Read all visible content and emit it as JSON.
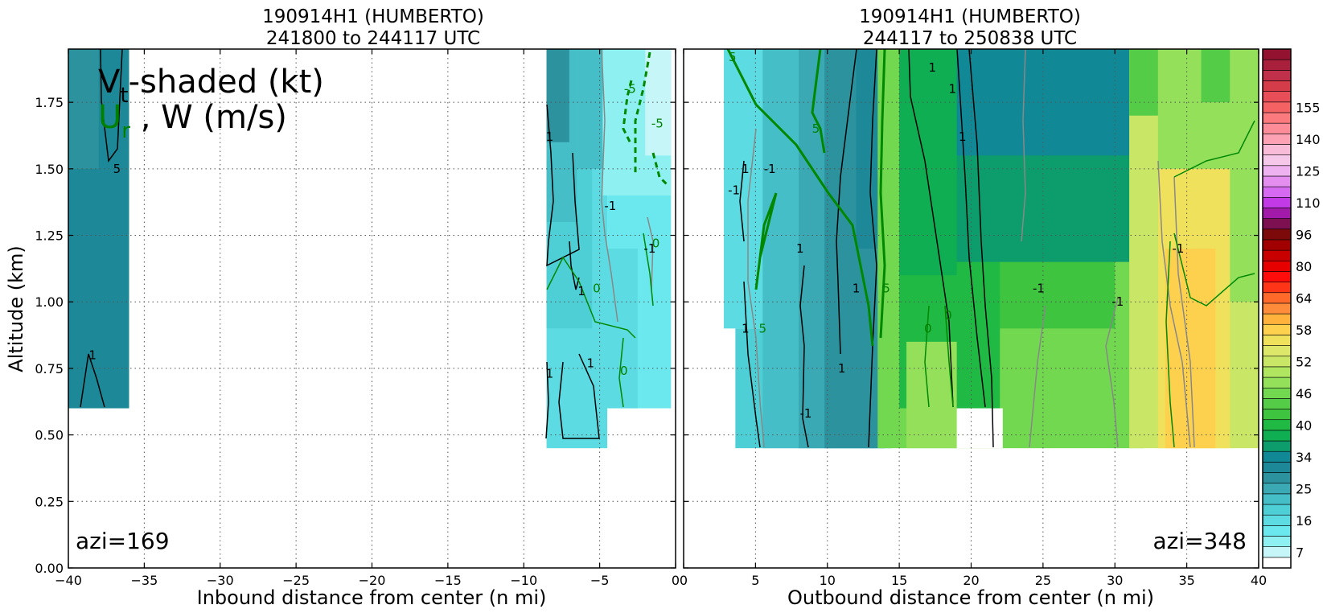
{
  "colors": {
    "bins": [
      "#ffffff",
      "#c6f6f8",
      "#8ff0f2",
      "#6ae8ee",
      "#5cdbe2",
      "#4ecfd6",
      "#45bec8",
      "#3aa9b4",
      "#2c929e",
      "#1d8998",
      "#108896",
      "#0d9d6c",
      "#0fae52",
      "#1fb944",
      "#3ec43e",
      "#55cc48",
      "#72d84f",
      "#94e05b",
      "#b0e55f",
      "#cae666",
      "#dde86a",
      "#f0e15c",
      "#fdd14e",
      "#ffb23c",
      "#ff8c3a",
      "#ff6a2a",
      "#ff3518",
      "#ff0d0a",
      "#e60000",
      "#c80000",
      "#a20000",
      "#7c0a0a",
      "#7c1050",
      "#a21aaa",
      "#c23ae6",
      "#d66af0",
      "#e48ef0",
      "#efb2f0",
      "#f5c8ea",
      "#f8bcd8",
      "#fca2b4",
      "#fc8c98",
      "#fb7a7e",
      "#f46264",
      "#e84e58",
      "#d43c4a",
      "#c0304a",
      "#a8203c",
      "#921230"
    ],
    "vt_positive": "#000000",
    "vt_negative_gray": "#808080",
    "ur": "#008000"
  },
  "chart_data": [
    {
      "type": "heatmap",
      "title_line1": "190914H1 (HUMBERTO)",
      "title_line2": "241800 to 244117 UTC",
      "xlabel": "Inbound distance from center (n mi)",
      "ylabel": "Altitude (km)",
      "xlim": [
        -40,
        0
      ],
      "ylim": [
        0,
        1.95
      ],
      "xticks": [
        -40,
        -35,
        -30,
        -25,
        -20,
        -15,
        -10,
        -5,
        0
      ],
      "xtick_labels": [
        "−40",
        "−35",
        "−30",
        "−25",
        "−20",
        "−15",
        "−10",
        "−5",
        "0"
      ],
      "yticks": [
        0.0,
        0.25,
        0.5,
        0.75,
        1.0,
        1.25,
        1.5,
        1.75
      ],
      "ytick_labels": [
        "0.00",
        "0.25",
        "0.50",
        "0.75",
        "1.00",
        "1.25",
        "1.50",
        "1.75"
      ],
      "grid": true,
      "overlay_line1": "V",
      "overlay_sub1": "t",
      "overlay_rest1": "-shaded (kt)",
      "overlay_line2_green": "U",
      "overlay_sub2": "r",
      "overlay_rest2": " , W (m/s)",
      "annotation": "azi=169",
      "contour_labels": [
        {
          "text": "5",
          "x": -36.8,
          "y": 1.5,
          "color": "#000000"
        },
        {
          "text": "1",
          "x": -38.4,
          "y": 0.8,
          "color": "#000000"
        },
        {
          "text": "1",
          "x": -8.3,
          "y": 1.62,
          "color": "#000000"
        },
        {
          "text": "1",
          "x": -6.2,
          "y": 1.04,
          "color": "#000000"
        },
        {
          "text": "1",
          "x": -8.3,
          "y": 0.73,
          "color": "#000000"
        },
        {
          "text": "1",
          "x": -5.6,
          "y": 0.77,
          "color": "#000000"
        },
        {
          "text": "-1",
          "x": -4.3,
          "y": 1.36,
          "color": "#000000"
        },
        {
          "text": "-1",
          "x": -1.7,
          "y": 1.2,
          "color": "#000000"
        },
        {
          "text": "0",
          "x": -5.2,
          "y": 1.05,
          "color": "#008000"
        },
        {
          "text": "0",
          "x": -3.4,
          "y": 0.74,
          "color": "#008000"
        },
        {
          "text": "0",
          "x": -1.3,
          "y": 1.22,
          "color": "#008000"
        },
        {
          "text": "-5",
          "x": -3.0,
          "y": 1.8,
          "color": "#008000"
        },
        {
          "text": "-5",
          "x": -1.2,
          "y": 1.67,
          "color": "#008000"
        }
      ],
      "cells": [
        {
          "x0": -40,
          "x1": -36,
          "y0": 0.6,
          "y1": 1.95,
          "bin": 9
        },
        {
          "x0": -40,
          "x1": -38,
          "y0": 1.5,
          "y1": 1.95,
          "bin": 8
        },
        {
          "x0": -36,
          "x1": -36,
          "y0": 0.75,
          "y1": 0.75,
          "bin": 9
        },
        {
          "x0": -8.5,
          "x1": -4.5,
          "y0": 0.45,
          "y1": 1.95,
          "bin": 4
        },
        {
          "x0": -8.5,
          "x1": -5.5,
          "y0": 0.9,
          "y1": 1.95,
          "bin": 5
        },
        {
          "x0": -8.5,
          "x1": -6.5,
          "y0": 1.3,
          "y1": 1.95,
          "bin": 6
        },
        {
          "x0": -8.5,
          "x1": -7.0,
          "y0": 1.6,
          "y1": 1.95,
          "bin": 8
        },
        {
          "x0": -6.5,
          "x1": -4.5,
          "y0": 1.5,
          "y1": 1.95,
          "bin": 6
        },
        {
          "x0": -4.5,
          "x1": -0.3,
          "y0": 0.6,
          "y1": 1.95,
          "bin": 3
        },
        {
          "x0": -4.5,
          "x1": -2.5,
          "y0": 0.6,
          "y1": 1.2,
          "bin": 4
        },
        {
          "x0": -4.8,
          "x1": -0.3,
          "y0": 1.4,
          "y1": 1.95,
          "bin": 2
        },
        {
          "x0": -2.0,
          "x1": -0.3,
          "y0": 1.55,
          "y1": 1.95,
          "bin": 1
        }
      ]
    },
    {
      "type": "heatmap",
      "title_line1": "190914H1 (HUMBERTO)",
      "title_line2": "244117 to 250838 UTC",
      "xlabel": "Outbound distance from center (n mi)",
      "ylabel": "",
      "xlim": [
        0,
        40
      ],
      "ylim": [
        0,
        1.95
      ],
      "xticks": [
        0,
        5,
        10,
        15,
        20,
        25,
        30,
        35,
        40
      ],
      "xtick_labels": [
        "0",
        "5",
        "10",
        "15",
        "20",
        "25",
        "30",
        "35",
        "40"
      ],
      "grid": true,
      "annotation": "azi=348",
      "contour_labels": [
        {
          "text": "1",
          "x": 17.3,
          "y": 1.88,
          "color": "#000000"
        },
        {
          "text": "1",
          "x": 18.7,
          "y": 1.8,
          "color": "#000000"
        },
        {
          "text": "1",
          "x": 19.4,
          "y": 1.62,
          "color": "#000000"
        },
        {
          "text": "-1",
          "x": 3.5,
          "y": 1.42,
          "color": "#000000"
        },
        {
          "text": "1",
          "x": 4.3,
          "y": 1.5,
          "color": "#000000"
        },
        {
          "text": "-1",
          "x": 6.0,
          "y": 1.5,
          "color": "#000000"
        },
        {
          "text": "1",
          "x": 8.1,
          "y": 1.2,
          "color": "#000000"
        },
        {
          "text": "1",
          "x": 12.0,
          "y": 1.05,
          "color": "#000000"
        },
        {
          "text": "1",
          "x": 4.3,
          "y": 0.9,
          "color": "#000000"
        },
        {
          "text": "1",
          "x": 11.0,
          "y": 0.75,
          "color": "#000000"
        },
        {
          "text": "-1",
          "x": 8.5,
          "y": 0.58,
          "color": "#000000"
        },
        {
          "text": "-1",
          "x": 24.7,
          "y": 1.05,
          "color": "#000000"
        },
        {
          "text": "-1",
          "x": 30.2,
          "y": 1.0,
          "color": "#000000"
        },
        {
          "text": "-1",
          "x": 34.4,
          "y": 1.2,
          "color": "#000000"
        },
        {
          "text": "5",
          "x": 9.2,
          "y": 1.65,
          "color": "#008000"
        },
        {
          "text": "5",
          "x": 3.4,
          "y": 1.92,
          "color": "#008000"
        },
        {
          "text": "5",
          "x": 5.5,
          "y": 0.9,
          "color": "#008000"
        },
        {
          "text": "5",
          "x": 14.1,
          "y": 1.05,
          "color": "#008000"
        },
        {
          "text": "0",
          "x": 17.0,
          "y": 0.9,
          "color": "#008000"
        },
        {
          "text": "0",
          "x": 18.4,
          "y": 0.95,
          "color": "#008000"
        }
      ],
      "cells": [
        {
          "x0": 2.8,
          "x1": 14.0,
          "y0": 0.9,
          "y1": 1.95,
          "bin": 4
        },
        {
          "x0": 3.6,
          "x1": 14.0,
          "y0": 0.45,
          "y1": 0.9,
          "bin": 5
        },
        {
          "x0": 5.5,
          "x1": 14.0,
          "y0": 0.45,
          "y1": 1.95,
          "bin": 6
        },
        {
          "x0": 8.0,
          "x1": 14.5,
          "y0": 0.45,
          "y1": 1.95,
          "bin": 7
        },
        {
          "x0": 9.8,
          "x1": 13.5,
          "y0": 0.45,
          "y1": 1.95,
          "bin": 8
        },
        {
          "x0": 12.0,
          "x1": 15.5,
          "y0": 1.2,
          "y1": 1.95,
          "bin": 9
        },
        {
          "x0": 13.5,
          "x1": 32.0,
          "y0": 0.45,
          "y1": 1.95,
          "bin": 16
        },
        {
          "x0": 15.0,
          "x1": 30.0,
          "y0": 0.9,
          "y1": 1.95,
          "bin": 14
        },
        {
          "x0": 15.0,
          "x1": 22.0,
          "y0": 0.6,
          "y1": 1.95,
          "bin": 13
        },
        {
          "x0": 15.0,
          "x1": 19.0,
          "y0": 1.1,
          "y1": 1.95,
          "bin": 12
        },
        {
          "x0": 19.0,
          "x1": 31.0,
          "y0": 1.15,
          "y1": 1.95,
          "bin": 11
        },
        {
          "x0": 19.0,
          "x1": 31.0,
          "y0": 1.55,
          "y1": 1.95,
          "bin": 10
        },
        {
          "x0": 15.5,
          "x1": 19.0,
          "y0": 0.45,
          "y1": 0.85,
          "bin": 17
        },
        {
          "x0": 31.0,
          "x1": 40,
          "y0": 0.45,
          "y1": 1.95,
          "bin": 19
        },
        {
          "x0": 33.0,
          "x1": 40,
          "y0": 1.0,
          "y1": 1.95,
          "bin": 17
        },
        {
          "x0": 33.0,
          "x1": 38.0,
          "y0": 0.45,
          "y1": 1.5,
          "bin": 21
        },
        {
          "x0": 33.5,
          "x1": 37.0,
          "y0": 0.45,
          "y1": 1.2,
          "bin": 22
        },
        {
          "x0": 31.0,
          "x1": 33.0,
          "y0": 1.7,
          "y1": 1.95,
          "bin": 15
        },
        {
          "x0": 36.0,
          "x1": 38.0,
          "y0": 1.75,
          "y1": 1.95,
          "bin": 15
        },
        {
          "x0": 19.0,
          "x1": 22.2,
          "y0": 0.45,
          "y1": 0.6,
          "bin": 0
        }
      ]
    }
  ],
  "colorbar": {
    "labels": [
      {
        "text": "7",
        "value": 7
      },
      {
        "text": "16",
        "value": 16
      },
      {
        "text": "25",
        "value": 25
      },
      {
        "text": "34",
        "value": 34
      },
      {
        "text": "40",
        "value": 40
      },
      {
        "text": "46",
        "value": 46
      },
      {
        "text": "52",
        "value": 52
      },
      {
        "text": "58",
        "value": 58
      },
      {
        "text": "64",
        "value": 64
      },
      {
        "text": "80",
        "value": 80
      },
      {
        "text": "96",
        "value": 96
      },
      {
        "text": "110",
        "value": 110
      },
      {
        "text": "125",
        "value": 125
      },
      {
        "text": "140",
        "value": 140
      },
      {
        "text": "155",
        "value": 155
      }
    ]
  }
}
